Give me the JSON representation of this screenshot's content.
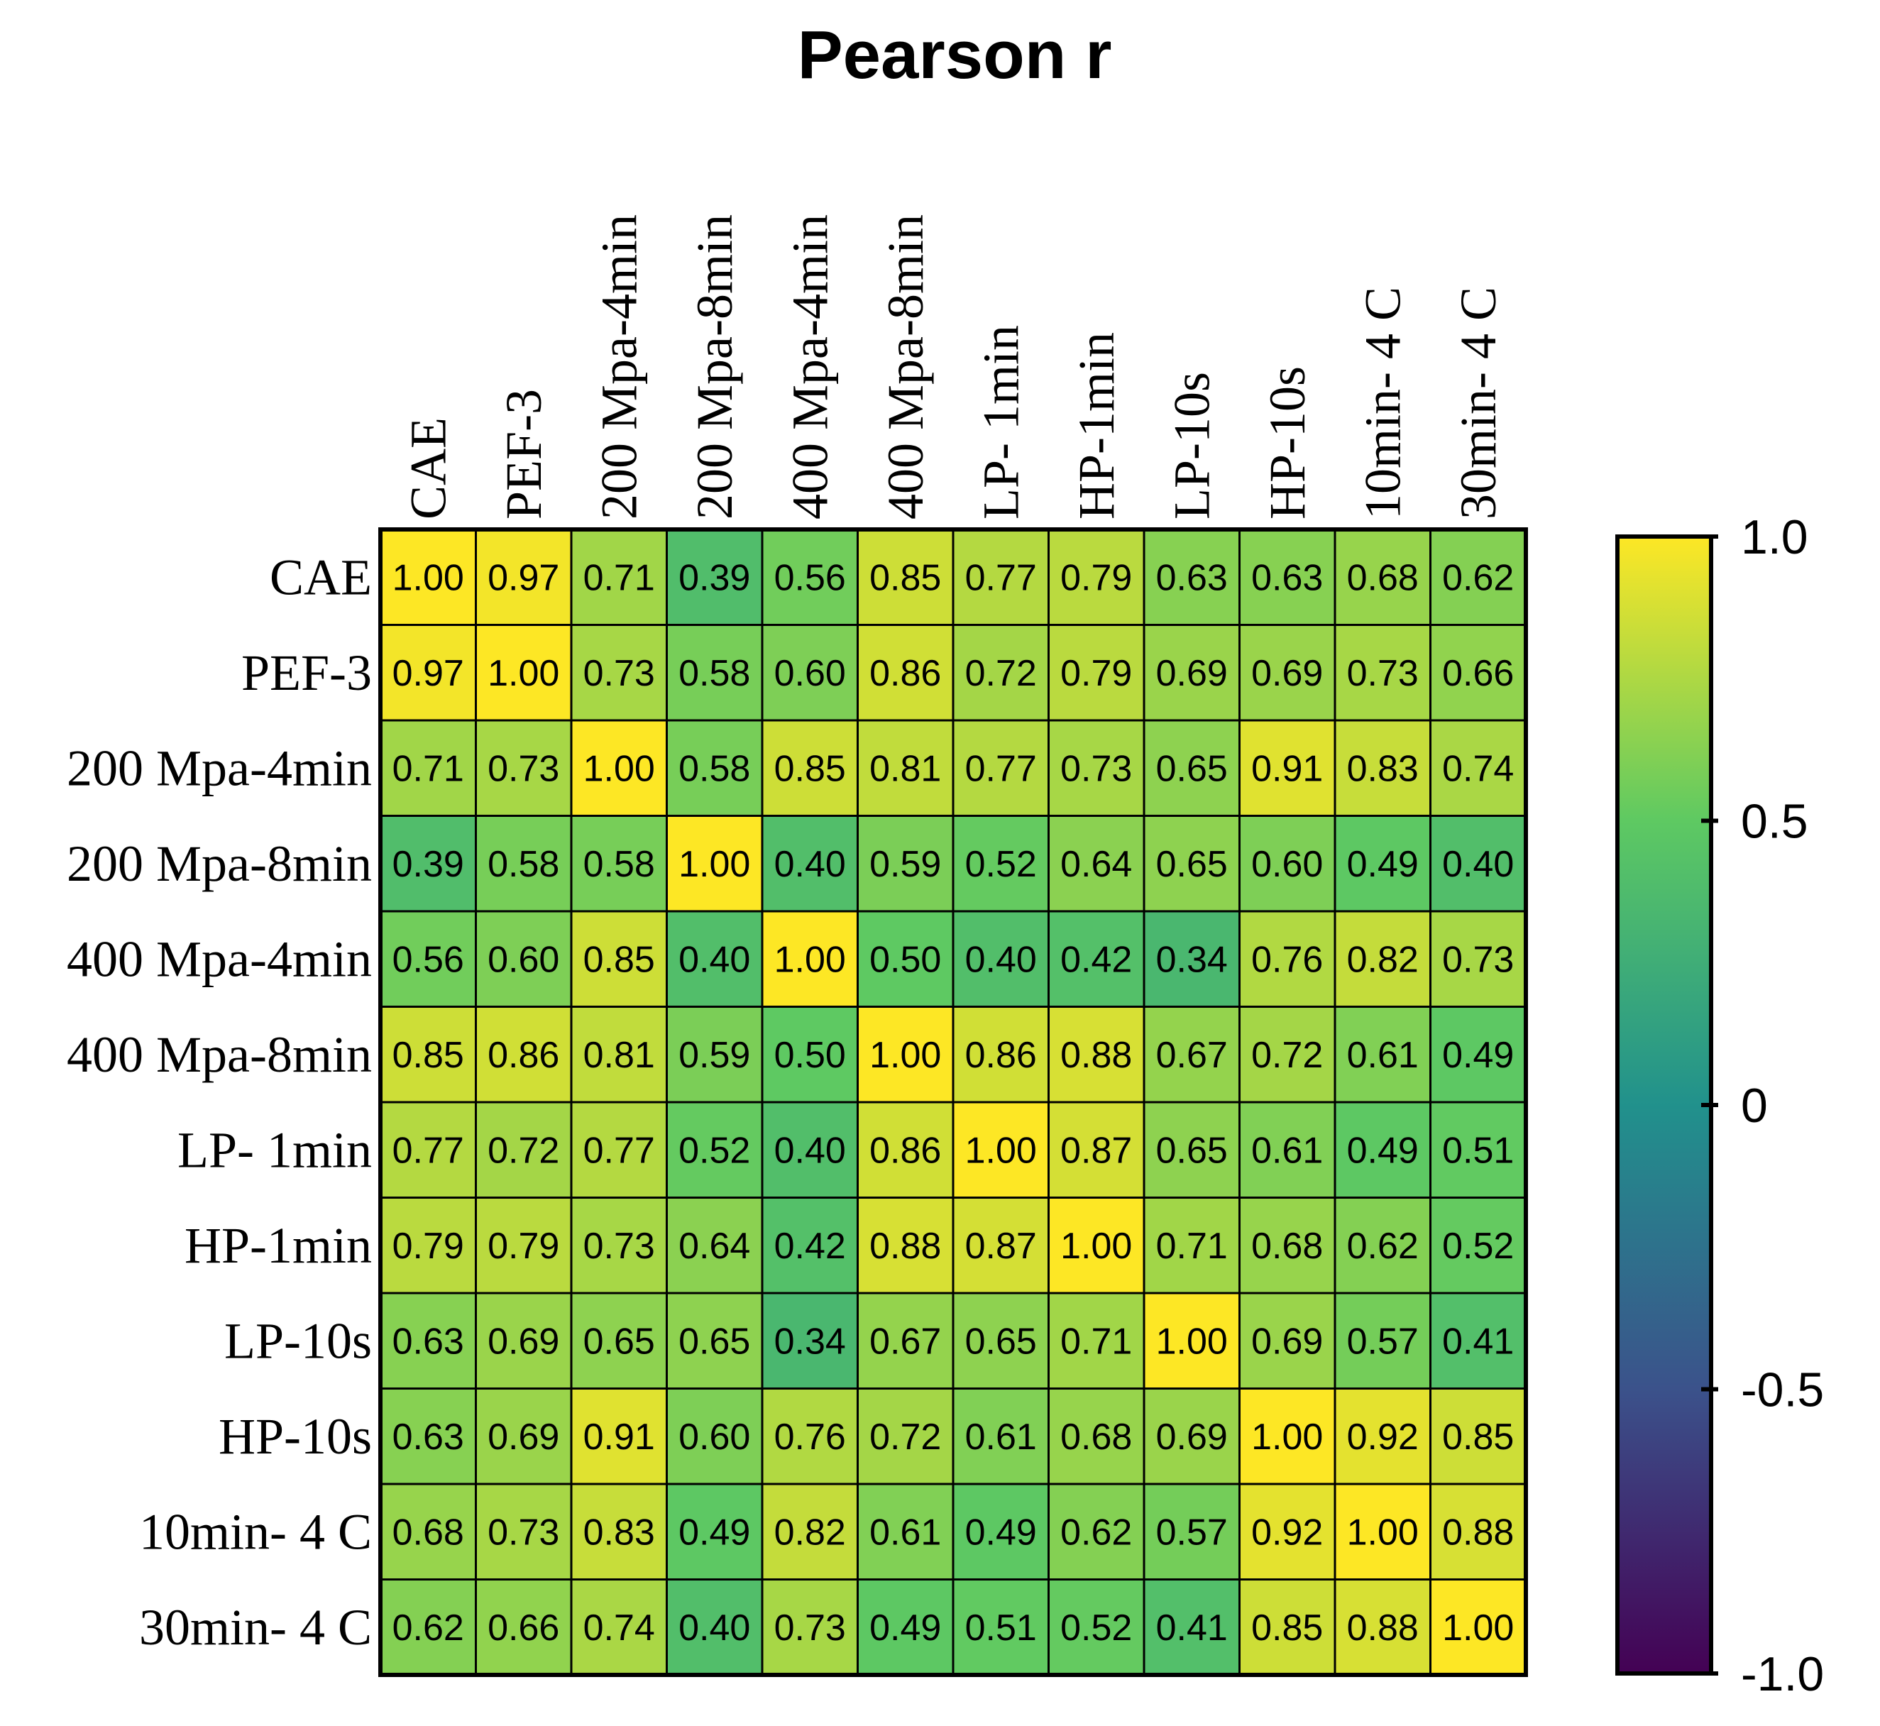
{
  "chart_data": {
    "type": "heatmap",
    "title": "Pearson r",
    "row_labels": [
      "CAE",
      "PEF-3",
      "200 Mpa-4min",
      "200 Mpa-8min",
      "400 Mpa-4min",
      "400 Mpa-8min",
      "LP- 1min",
      "HP-1min",
      "LP-10s",
      "HP-10s",
      "10min- 4 C",
      "30min- 4 C"
    ],
    "col_labels": [
      "CAE",
      "PEF-3",
      "200 Mpa-4min",
      "200 Mpa-8min",
      "400 Mpa-4min",
      "400 Mpa-8min",
      "LP- 1min",
      "HP-1min",
      "LP-10s",
      "HP-10s",
      "10min- 4 C",
      "30min- 4 C"
    ],
    "values": [
      [
        1.0,
        0.97,
        0.71,
        0.39,
        0.56,
        0.85,
        0.77,
        0.79,
        0.63,
        0.63,
        0.68,
        0.62
      ],
      [
        0.97,
        1.0,
        0.73,
        0.58,
        0.6,
        0.86,
        0.72,
        0.79,
        0.69,
        0.69,
        0.73,
        0.66
      ],
      [
        0.71,
        0.73,
        1.0,
        0.58,
        0.85,
        0.81,
        0.77,
        0.73,
        0.65,
        0.91,
        0.83,
        0.74
      ],
      [
        0.39,
        0.58,
        0.58,
        1.0,
        0.4,
        0.59,
        0.52,
        0.64,
        0.65,
        0.6,
        0.49,
        0.4
      ],
      [
        0.56,
        0.6,
        0.85,
        0.4,
        1.0,
        0.5,
        0.4,
        0.42,
        0.34,
        0.76,
        0.82,
        0.73
      ],
      [
        0.85,
        0.86,
        0.81,
        0.59,
        0.5,
        1.0,
        0.86,
        0.88,
        0.67,
        0.72,
        0.61,
        0.49
      ],
      [
        0.77,
        0.72,
        0.77,
        0.52,
        0.4,
        0.86,
        1.0,
        0.87,
        0.65,
        0.61,
        0.49,
        0.51
      ],
      [
        0.79,
        0.79,
        0.73,
        0.64,
        0.42,
        0.88,
        0.87,
        1.0,
        0.71,
        0.68,
        0.62,
        0.52
      ],
      [
        0.63,
        0.69,
        0.65,
        0.65,
        0.34,
        0.67,
        0.65,
        0.71,
        1.0,
        0.69,
        0.57,
        0.41
      ],
      [
        0.63,
        0.69,
        0.91,
        0.6,
        0.76,
        0.72,
        0.61,
        0.68,
        0.69,
        1.0,
        0.92,
        0.85
      ],
      [
        0.68,
        0.73,
        0.83,
        0.49,
        0.82,
        0.61,
        0.49,
        0.62,
        0.57,
        0.92,
        1.0,
        0.88
      ],
      [
        0.62,
        0.66,
        0.74,
        0.4,
        0.73,
        0.49,
        0.51,
        0.52,
        0.41,
        0.85,
        0.88,
        1.0
      ]
    ],
    "value_labels": [
      [
        "1.00",
        "0.97",
        "0.71",
        "0.39",
        "0.56",
        "0.85",
        "0.77",
        "0.79",
        "0.63",
        "0.63",
        "0.68",
        "0.62"
      ],
      [
        "0.97",
        "1.00",
        "0.73",
        "0.58",
        "0.60",
        "0.86",
        "0.72",
        "0.79",
        "0.69",
        "0.69",
        "0.73",
        "0.66"
      ],
      [
        "0.71",
        "0.73",
        "1.00",
        "0.58",
        "0.85",
        "0.81",
        "0.77",
        "0.73",
        "0.65",
        "0.91",
        "0.83",
        "0.74"
      ],
      [
        "0.39",
        "0.58",
        "0.58",
        "1.00",
        "0.40",
        "0.59",
        "0.52",
        "0.64",
        "0.65",
        "0.60",
        "0.49",
        "0.40"
      ],
      [
        "0.56",
        "0.60",
        "0.85",
        "0.40",
        "1.00",
        "0.50",
        "0.40",
        "0.42",
        "0.34",
        "0.76",
        "0.82",
        "0.73"
      ],
      [
        "0.85",
        "0.86",
        "0.81",
        "0.59",
        "0.50",
        "1.00",
        "0.86",
        "0.88",
        "0.67",
        "0.72",
        "0.61",
        "0.49"
      ],
      [
        "0.77",
        "0.72",
        "0.77",
        "0.52",
        "0.40",
        "0.86",
        "1.00",
        "0.87",
        "0.65",
        "0.61",
        "0.49",
        "0.51"
      ],
      [
        "0.79",
        "0.79",
        "0.73",
        "0.64",
        "0.42",
        "0.88",
        "0.87",
        "1.00",
        "0.71",
        "0.68",
        "0.62",
        "0.52"
      ],
      [
        "0.63",
        "0.69",
        "0.65",
        "0.65",
        "0.34",
        "0.67",
        "0.65",
        "0.71",
        "1.00",
        "0.69",
        "0.57",
        "0.41"
      ],
      [
        "0.63",
        "0.69",
        "0.91",
        "0.60",
        "0.76",
        "0.72",
        "0.61",
        "0.68",
        "0.69",
        "1.00",
        "0.92",
        "0.85"
      ],
      [
        "0.68",
        "0.73",
        "0.83",
        "0.49",
        "0.82",
        "0.61",
        "0.49",
        "0.62",
        "0.57",
        "0.92",
        "1.00",
        "0.88"
      ],
      [
        "0.62",
        "0.66",
        "0.74",
        "0.40",
        "0.73",
        "0.49",
        "0.51",
        "0.52",
        "0.41",
        "0.85",
        "0.88",
        "1.00"
      ]
    ],
    "colorbar": {
      "range": [
        -1.0,
        1.0
      ],
      "ticks": [
        1.0,
        0.5,
        0,
        -0.5,
        -1.0
      ],
      "tick_labels": [
        "1.0",
        "0.5",
        "0",
        "-0.5",
        "-1.0"
      ],
      "colormap": "viridis"
    },
    "colors": {
      "colormap_stops": [
        "#440154",
        "#3b528b",
        "#21918c",
        "#5ec962",
        "#fde725"
      ],
      "grid": "#000000"
    }
  }
}
